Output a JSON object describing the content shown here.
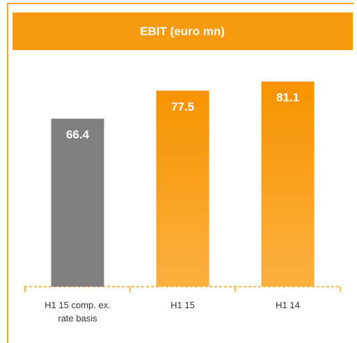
{
  "chart_data": {
    "type": "bar",
    "title": "EBIT (euro mn)",
    "categories": [
      "H1 15 comp. ex. rate basis",
      "H1 15",
      "H1 14"
    ],
    "values": [
      66.4,
      77.5,
      81.1
    ],
    "colors": [
      "#808080",
      "#f7a11a",
      "#f7a11a"
    ]
  }
}
